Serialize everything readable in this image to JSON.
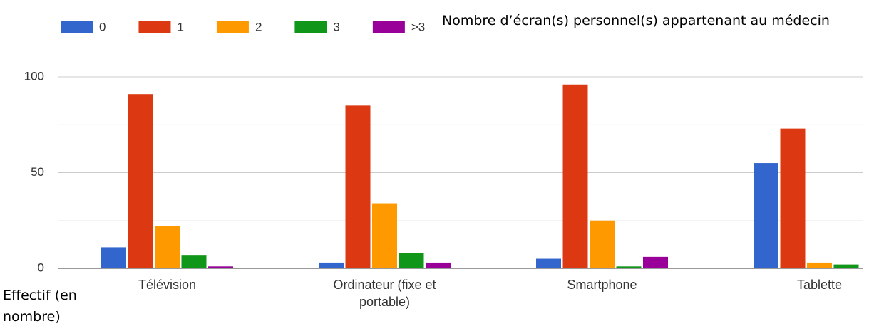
{
  "chart_data": {
    "type": "bar",
    "title": "Nombre d’écran(s) personnel(s) appartenant au médecin",
    "y_label": "Effectif (en nombre)",
    "categories": [
      "Télévision",
      "Ordinateur (fixe et portable)",
      "Smartphone",
      "Tablette"
    ],
    "series": [
      {
        "name": "0",
        "color": "#3366cc",
        "values": [
          11,
          3,
          5,
          55
        ]
      },
      {
        "name": "1",
        "color": "#dc3912",
        "values": [
          91,
          85,
          96,
          73
        ]
      },
      {
        "name": "2",
        "color": "#ff9900",
        "values": [
          22,
          34,
          25,
          3
        ]
      },
      {
        "name": "3",
        "color": "#109618",
        "values": [
          7,
          8,
          1,
          2
        ]
      },
      {
        "name": ">3",
        "color": "#990099",
        "values": [
          1,
          3,
          6,
          0
        ]
      }
    ],
    "ylim": [
      0,
      100
    ],
    "yticks": [
      0,
      50,
      100
    ],
    "minor_yticks": [
      25,
      75
    ],
    "grid": true,
    "legend": "top"
  }
}
